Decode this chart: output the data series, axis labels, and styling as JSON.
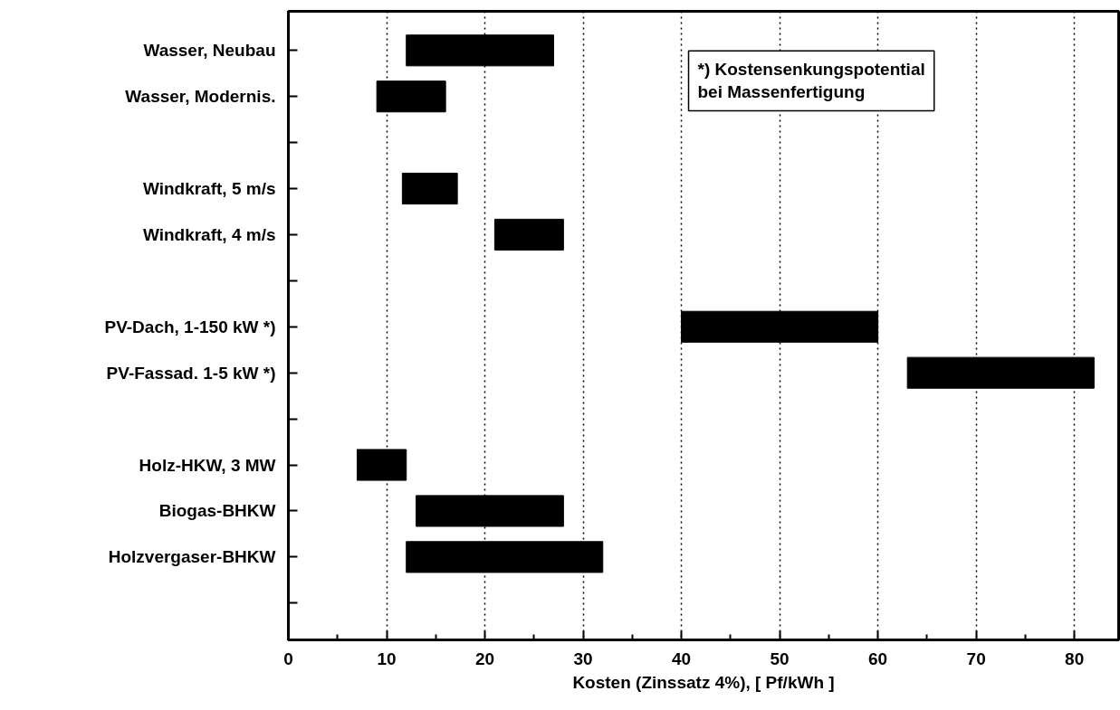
{
  "chart_data": {
    "type": "bar",
    "orientation": "horizontal",
    "xlabel": "Kosten (Zinssatz 4%), [ Pf/kWh ]",
    "categories": [
      "Wasser, Neubau",
      "Wasser, Modernis.",
      null,
      "Windkraft, 5 m/s",
      "Windkraft, 4 m/s",
      null,
      "PV-Dach, 1-150 kW *)",
      "PV-Fassad. 1-5 kW *)",
      null,
      "Holz-HKW, 3 MW",
      "Biogas-BHKW",
      "Holzvergaser-BHKW",
      null
    ],
    "series": [
      {
        "color": "#000000",
        "base": [
          12,
          9,
          null,
          11.6,
          21,
          null,
          40,
          63,
          null,
          7,
          13,
          12,
          null
        ],
        "values": [
          15,
          7,
          null,
          5.6,
          7,
          null,
          20,
          19,
          null,
          5,
          15,
          20,
          null
        ]
      }
    ],
    "xlim": [
      0,
      84.5
    ],
    "xticks": [
      0,
      {
        "value": 5,
        "label": null
      },
      10,
      {
        "value": 15,
        "label": null
      },
      20,
      {
        "value": 25,
        "label": null
      },
      30,
      {
        "value": 35,
        "label": null
      },
      40,
      {
        "value": 45,
        "label": null
      },
      50,
      {
        "value": 55,
        "label": null
      },
      60,
      {
        "value": 65,
        "label": null
      },
      70,
      {
        "value": 75,
        "label": null
      },
      80
    ],
    "grid": "x",
    "annotations": [
      "*) Kostensenkungspotential\n   bei Massenfertigung"
    ]
  }
}
